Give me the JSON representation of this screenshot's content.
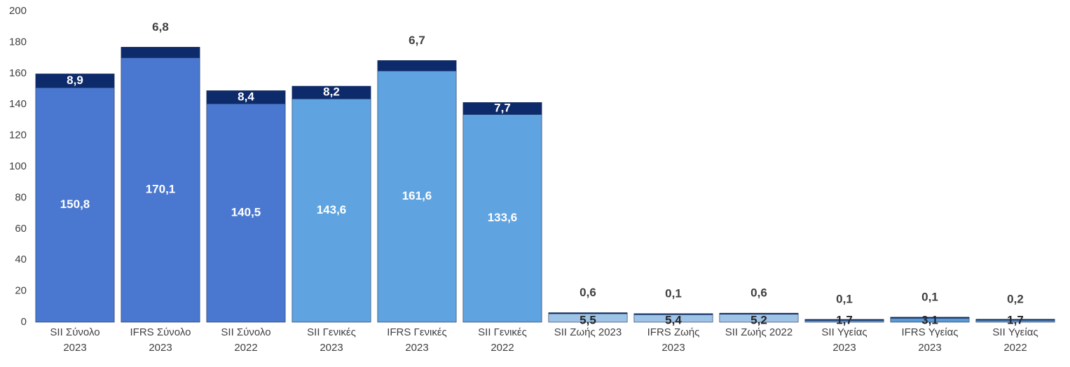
{
  "chart_data": {
    "type": "stacked_bar",
    "categories": [
      "SII Σύνολο\n2023",
      "IFRS Σύνολο\n2023",
      "SII Σύνολο\n2022",
      "SII Γενικές\n2023",
      "IFRS Γενικές\n2023",
      "SII Γενικές\n2022",
      "SII Ζωής 2023",
      "IFRS Ζωής\n2023",
      "SII Ζωής 2022",
      "SII Υγείας\n2023",
      "IFRS Υγείας\n2023",
      "SII Υγείας\n2022"
    ],
    "series": [
      {
        "colors": [
          "#4a78d0",
          "#4a78d0",
          "#4a78d0",
          "#5fa3e0",
          "#5fa3e0",
          "#5fa3e0",
          "#9dc3e6",
          "#9dc3e6",
          "#9dc3e6",
          "#5b9bd5",
          "#5b9bd5",
          "#5b9bd5"
        ],
        "values": [
          150.8,
          170.1,
          140.5,
          143.6,
          161.6,
          133.6,
          5.5,
          5.4,
          5.2,
          1.7,
          3.1,
          1.7
        ],
        "value_labels": [
          "150,8",
          "170,1",
          "140,5",
          "143,6",
          "161,6",
          "133,6",
          "5,5",
          "5,4",
          "5,2",
          "1,7",
          "3,1",
          "1,7"
        ]
      },
      {
        "color": "#0d2a6b",
        "values": [
          8.9,
          6.8,
          8.4,
          8.2,
          6.7,
          7.7,
          0.6,
          0.1,
          0.6,
          0.1,
          0.1,
          0.2
        ],
        "value_labels": [
          "8,9",
          "6,8",
          "8,4",
          "8,2",
          "6,7",
          "7,7",
          "0,6",
          "0,1",
          "0,6",
          "0,1",
          "0,1",
          "0,2"
        ]
      }
    ],
    "ylim": [
      0,
      200
    ],
    "yticks": [
      0,
      20,
      40,
      60,
      80,
      100,
      120,
      140,
      160,
      180,
      200
    ],
    "grid": false
  }
}
